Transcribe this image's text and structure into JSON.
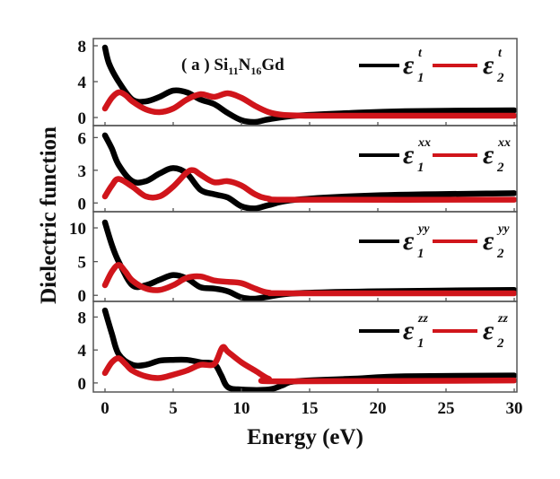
{
  "chart_data": {
    "type": "line",
    "title": "( a ) Si11N16Gd",
    "title_parts": {
      "prefix": "( a ) Si",
      "sub1": "11",
      "mid": "N",
      "sub2": "16",
      "suffix": "Gd"
    },
    "xlabel": "Energy (eV)",
    "ylabel": "Dielectric function",
    "xlim": [
      -1,
      30
    ],
    "xticks": [
      0,
      5,
      10,
      15,
      20,
      25,
      30
    ],
    "colors": {
      "eps1": "#000000",
      "eps2": "#d0151b"
    },
    "panels": [
      {
        "component": "t",
        "legend": {
          "eps1": "ε",
          "eps1_sub": "1",
          "eps1_sup": "t",
          "eps2": "ε",
          "eps2_sub": "2",
          "eps2_sup": "t"
        },
        "ylim": [
          -0.9,
          8.8
        ],
        "yticks": [
          0,
          4,
          8
        ],
        "series": [
          {
            "name": "eps1",
            "x": [
              0,
              0.3,
              1,
              2,
              3,
              4,
              5,
              6,
              7,
              8,
              9,
              10,
              11,
              12,
              14,
              18,
              22,
              30
            ],
            "y": [
              7.8,
              6,
              4,
              2,
              1.8,
              2.3,
              3,
              2.8,
              2,
              1.5,
              0.5,
              -0.3,
              -0.5,
              -0.2,
              0.2,
              0.5,
              0.7,
              0.8
            ]
          },
          {
            "name": "eps2",
            "x": [
              0,
              0.5,
              1,
              1.5,
              2,
              3,
              4,
              5,
              6,
              7,
              8,
              9,
              10,
              11,
              12,
              13,
              15,
              20,
              30
            ],
            "y": [
              1,
              2.2,
              2.8,
              2.5,
              1.8,
              0.9,
              0.6,
              1,
              2,
              2.6,
              2.3,
              2.7,
              2.2,
              1.3,
              0.6,
              0.3,
              0.2,
              0.2,
              0.2
            ]
          }
        ]
      },
      {
        "component": "xx",
        "legend": {
          "eps1": "ε",
          "eps1_sub": "1",
          "eps1_sup": "xx",
          "eps2": "ε",
          "eps2_sub": "2",
          "eps2_sup": "xx"
        },
        "ylim": [
          -0.8,
          7.1
        ],
        "yticks": [
          0,
          3,
          6
        ],
        "series": [
          {
            "name": "eps1",
            "x": [
              0,
              0.5,
              1,
              2,
              3,
              4,
              5,
              6,
              7,
              8,
              9,
              10,
              11,
              12,
              14,
              20,
              30
            ],
            "y": [
              6.2,
              5,
              3.5,
              2,
              2,
              2.7,
              3.2,
              2.7,
              1.2,
              0.8,
              0.5,
              -0.3,
              -0.5,
              -0.2,
              0.3,
              0.7,
              0.9
            ]
          },
          {
            "name": "eps2",
            "x": [
              0,
              0.5,
              1,
              2,
              3,
              4,
              5,
              6,
              6.5,
              7,
              8,
              9,
              10,
              11,
              12,
              14,
              30
            ],
            "y": [
              0.6,
              1.6,
              2.2,
              1.5,
              0.6,
              0.6,
              1.5,
              2.8,
              3,
              2.6,
              1.9,
              2,
              1.6,
              0.8,
              0.4,
              0.3,
              0.3
            ]
          }
        ]
      },
      {
        "component": "yy",
        "legend": {
          "eps1": "ε",
          "eps1_sub": "1",
          "eps1_sup": "yy",
          "eps2": "ε",
          "eps2_sub": "2",
          "eps2_sup": "yy"
        },
        "ylim": [
          -0.9,
          12.4
        ],
        "yticks": [
          0,
          5,
          10
        ],
        "series": [
          {
            "name": "eps1",
            "x": [
              0,
              0.5,
              1,
              2,
              3,
              4,
              5,
              6,
              7,
              8,
              9,
              10,
              11,
              12,
              14,
              20,
              30
            ],
            "y": [
              10.8,
              7.5,
              5,
              1.5,
              1.5,
              2.3,
              3,
              2.5,
              1.2,
              1,
              0.6,
              -0.3,
              -0.5,
              -0.2,
              0.3,
              0.6,
              0.8
            ]
          },
          {
            "name": "eps2",
            "x": [
              0,
              0.5,
              1,
              1.5,
              2,
              3,
              4,
              5,
              6,
              7,
              8,
              9,
              10,
              11,
              12,
              14,
              30
            ],
            "y": [
              1.5,
              3.5,
              4.5,
              3.5,
              2.2,
              1,
              0.8,
              1.5,
              2.6,
              2.8,
              2.2,
              2,
              1.8,
              1,
              0.4,
              0.3,
              0.3
            ]
          }
        ]
      },
      {
        "component": "zz",
        "legend": {
          "eps1": "ε",
          "eps1_sub": "1",
          "eps1_sup": "zz",
          "eps2": "ε",
          "eps2_sub": "2",
          "eps2_sup": "zz"
        },
        "ylim": [
          -1.1,
          9.9
        ],
        "yticks": [
          0,
          4,
          8
        ],
        "series": [
          {
            "name": "eps1",
            "x": [
              0,
              0.5,
              1,
              2,
              3,
              4,
              5,
              6,
              7,
              8,
              8.5,
              9,
              10,
              12,
              13,
              14,
              18,
              22,
              30
            ],
            "y": [
              8.8,
              6,
              3.5,
              2.2,
              2.2,
              2.7,
              2.8,
              2.8,
              2.5,
              2.3,
              1,
              -0.5,
              -0.8,
              -0.8,
              -0.3,
              0.2,
              0.5,
              0.8,
              0.9
            ]
          },
          {
            "name": "eps2",
            "x": [
              0,
              0.5,
              1,
              1.5,
              2,
              3,
              4,
              5,
              6,
              7,
              8,
              8.6,
              9,
              10,
              11,
              12,
              13,
              30
            ],
            "y": [
              1.2,
              2.5,
              3,
              2.3,
              1.5,
              0.8,
              0.6,
              1,
              1.5,
              2.2,
              2.3,
              4.3,
              3.8,
              2.5,
              1.5,
              0.5,
              0.2,
              0.3
            ]
          }
        ]
      }
    ]
  }
}
